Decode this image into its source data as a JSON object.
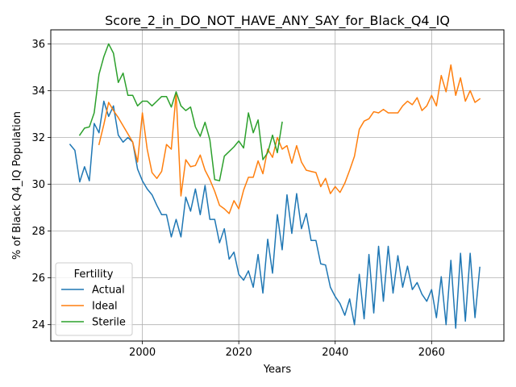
{
  "chart_data": {
    "type": "line",
    "title": "Score_2_in_DO_NOT_HAVE_ANY_SAY_for_Black_Q4_IQ",
    "xlabel": "Years",
    "ylabel": "% of Black Q4_IQ Population",
    "xlim": [
      1981,
      2075
    ],
    "ylim": [
      23.3,
      36.6
    ],
    "xticks": [
      2000,
      2020,
      2040,
      2060
    ],
    "yticks": [
      24,
      26,
      28,
      30,
      32,
      34,
      36
    ],
    "grid": true,
    "legend": {
      "title": "Fertility",
      "position": "bottom-left"
    },
    "series": [
      {
        "name": "Actual",
        "color": "#1f77b4",
        "x": [
          1985,
          1986,
          1987,
          1988,
          1989,
          1990,
          1991,
          1992,
          1993,
          1994,
          1995,
          1996,
          1997,
          1998,
          1999,
          2000,
          2001,
          2002,
          2003,
          2004,
          2005,
          2006,
          2007,
          2008,
          2009,
          2010,
          2011,
          2012,
          2013,
          2014,
          2015,
          2016,
          2017,
          2018,
          2019,
          2020,
          2021,
          2022,
          2023,
          2024,
          2025,
          2026,
          2027,
          2028,
          2029,
          2030,
          2031,
          2032,
          2033,
          2034,
          2035,
          2036,
          2037,
          2038,
          2039,
          2040,
          2041,
          2042,
          2043,
          2044,
          2045,
          2046,
          2047,
          2048,
          2049,
          2050,
          2051,
          2052,
          2053,
          2054,
          2055,
          2056,
          2057,
          2058,
          2059,
          2060,
          2061,
          2062,
          2063,
          2064,
          2065,
          2066,
          2067,
          2068,
          2069,
          2070
        ],
        "values": [
          31.7,
          31.45,
          30.1,
          30.75,
          30.15,
          32.6,
          32.2,
          33.55,
          32.9,
          33.35,
          32.1,
          31.8,
          32.0,
          31.8,
          30.65,
          30.15,
          29.8,
          29.55,
          29.1,
          28.7,
          28.7,
          27.75,
          28.5,
          27.75,
          29.45,
          28.85,
          29.8,
          28.7,
          29.95,
          28.5,
          28.5,
          27.5,
          28.1,
          26.8,
          27.1,
          26.15,
          25.9,
          26.3,
          25.6,
          27.0,
          25.35,
          27.65,
          26.2,
          28.7,
          27.2,
          29.55,
          27.9,
          29.6,
          28.1,
          28.75,
          27.6,
          27.6,
          26.6,
          26.55,
          25.6,
          25.2,
          24.9,
          24.4,
          25.1,
          24.0,
          26.15,
          24.25,
          27.0,
          24.5,
          27.35,
          25.0,
          27.35,
          25.35,
          26.95,
          25.6,
          26.5,
          25.5,
          25.8,
          25.3,
          25.0,
          25.5,
          24.3,
          26.05,
          24.0,
          26.75,
          23.85,
          27.05,
          24.15,
          27.05,
          24.3,
          26.45
        ]
      },
      {
        "name": "Ideal",
        "color": "#ff7f0e",
        "x": [
          1991,
          1992,
          1993,
          1994,
          1995,
          1996,
          1997,
          1998,
          1999,
          2000,
          2001,
          2002,
          2003,
          2004,
          2005,
          2006,
          2007,
          2008,
          2009,
          2010,
          2011,
          2012,
          2013,
          2014,
          2015,
          2016,
          2017,
          2018,
          2019,
          2020,
          2021,
          2022,
          2023,
          2024,
          2025,
          2026,
          2027,
          2028,
          2029,
          2030,
          2031,
          2032,
          2033,
          2034,
          2035,
          2036,
          2037,
          2038,
          2039,
          2040,
          2041,
          2042,
          2043,
          2044,
          2045,
          2046,
          2047,
          2048,
          2049,
          2050,
          2051,
          2052,
          2053,
          2054,
          2055,
          2056,
          2057,
          2058,
          2059,
          2060,
          2061,
          2062,
          2063,
          2064,
          2065,
          2066,
          2067,
          2068,
          2069,
          2070
        ],
        "values": [
          31.7,
          32.55,
          33.5,
          33.15,
          32.85,
          32.5,
          32.15,
          31.8,
          30.95,
          33.05,
          31.5,
          30.5,
          30.25,
          30.55,
          31.7,
          31.5,
          33.9,
          29.5,
          31.05,
          30.75,
          30.8,
          31.25,
          30.6,
          30.2,
          29.7,
          29.1,
          28.95,
          28.75,
          29.3,
          28.95,
          29.75,
          30.3,
          30.3,
          31.0,
          30.45,
          31.5,
          31.15,
          32.0,
          31.5,
          31.65,
          30.9,
          31.65,
          30.95,
          30.6,
          30.55,
          30.5,
          29.9,
          30.25,
          29.6,
          29.9,
          29.65,
          30.05,
          30.6,
          31.2,
          32.35,
          32.7,
          32.8,
          33.1,
          33.05,
          33.2,
          33.05,
          33.05,
          33.05,
          33.35,
          33.55,
          33.4,
          33.7,
          33.15,
          33.35,
          33.8,
          33.35,
          34.65,
          33.95,
          35.1,
          33.8,
          34.55,
          33.55,
          34.0,
          33.5,
          33.65
        ]
      },
      {
        "name": "Sterile",
        "color": "#2ca02c",
        "x": [
          1987,
          1988,
          1989,
          1990,
          1991,
          1992,
          1993,
          1994,
          1995,
          1996,
          1997,
          1998,
          1999,
          2000,
          2001,
          2002,
          2003,
          2004,
          2005,
          2006,
          2007,
          2008,
          2009,
          2010,
          2011,
          2012,
          2013,
          2014,
          2015,
          2016,
          2017,
          2018,
          2019,
          2020,
          2021,
          2022,
          2023,
          2024,
          2025,
          2026,
          2027,
          2028,
          2029
        ],
        "values": [
          32.1,
          32.4,
          32.45,
          33.05,
          34.7,
          35.45,
          36.0,
          35.6,
          34.35,
          34.75,
          33.8,
          33.8,
          33.35,
          33.55,
          33.55,
          33.35,
          33.55,
          33.75,
          33.75,
          33.3,
          33.95,
          33.35,
          33.15,
          33.3,
          32.45,
          32.05,
          32.65,
          31.9,
          30.2,
          30.15,
          31.2,
          31.4,
          31.6,
          31.85,
          31.55,
          33.05,
          32.2,
          32.75,
          31.05,
          31.35,
          32.1,
          31.35,
          32.65
        ]
      }
    ]
  }
}
